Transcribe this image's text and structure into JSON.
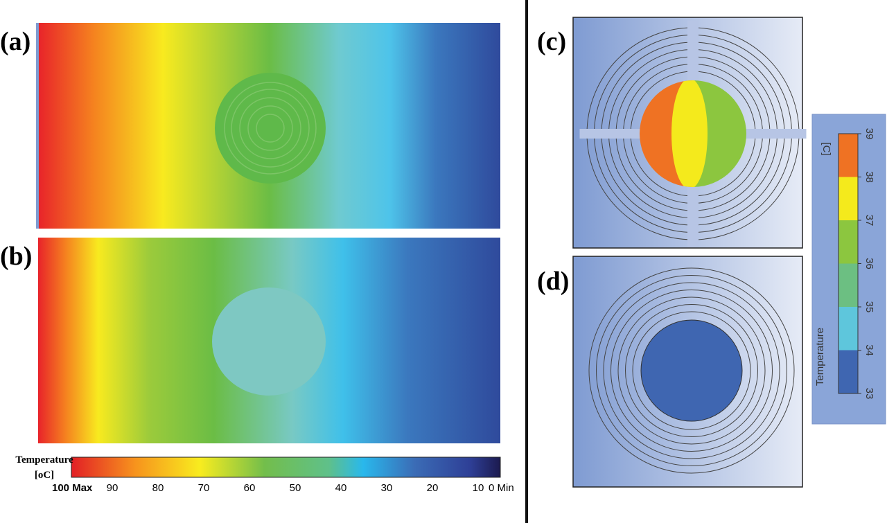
{
  "panels": [
    {
      "label": "(a)"
    },
    {
      "label": "(b)"
    },
    {
      "label": "(c)"
    },
    {
      "label": "(d)"
    }
  ],
  "colorbar_left": {
    "title": "Temperature",
    "unit": "[oC]",
    "range": [
      100,
      0
    ],
    "ticks": [
      {
        "value": 100,
        "label": "100 Max"
      },
      90,
      80,
      70,
      60,
      50,
      40,
      30,
      20,
      10,
      {
        "value": 0,
        "label": "0 Min"
      }
    ]
  },
  "colorbar_right": {
    "title": "Temperature",
    "unit": "[C]",
    "ticks": [
      33,
      34,
      35,
      36,
      37,
      38,
      39
    ],
    "colors": [
      "#3f66b1",
      "#5ec6dc",
      "#6cbf82",
      "#8cc63f",
      "#f4ea1c",
      "#ef7223"
    ]
  }
}
